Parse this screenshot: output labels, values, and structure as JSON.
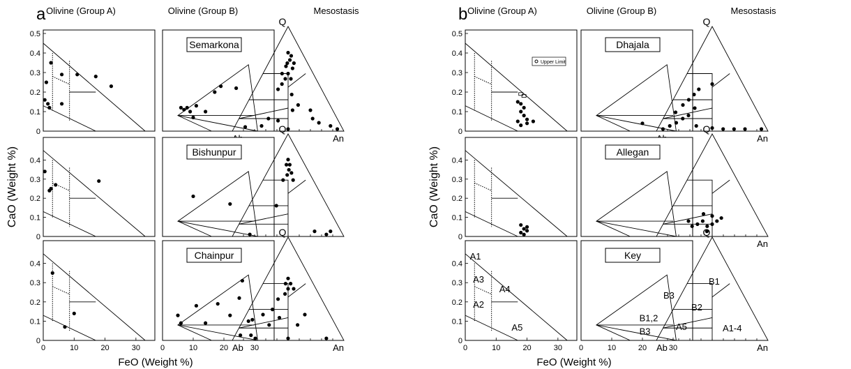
{
  "panels": [
    {
      "letter": "a",
      "col_headers": [
        "Olivine (Group A)",
        "Olivine (Group B)",
        "Mesostasis"
      ],
      "ylabel": "CaO (Weight %)",
      "xlabel": "FeO (Weight %)",
      "rows": [
        {
          "label": "Semarkona",
          "tern": {
            "Q": "Q",
            "Ab": "Ab",
            "An": "An"
          }
        },
        {
          "label": "Bishunpur",
          "tern": {
            "Q": "Q",
            "Ab": "",
            "An": ""
          }
        },
        {
          "label": "Chainpur",
          "tern": {
            "Q": "Q",
            "Ab": "Ab",
            "An": "An"
          }
        }
      ]
    },
    {
      "letter": "b",
      "col_headers": [
        "Olivine (Group A)",
        "Olivine (Group B)",
        "Mesostasis"
      ],
      "ylabel": "CaO (Weight %)",
      "xlabel": "FeO (Weight %)",
      "rows": [
        {
          "label": "Dhajala",
          "tern": {
            "Q": "Q",
            "Ab": "Ab",
            "An": "An"
          },
          "legend": "Upper Limit"
        },
        {
          "label": "Allegan",
          "tern": {
            "Q": "Q",
            "Ab": "Ab",
            "An": "An"
          }
        },
        {
          "label": "Key",
          "tern": {
            "Q": "Q",
            "Ab": "Ab",
            "An": "An"
          }
        }
      ]
    }
  ],
  "key_labels": {
    "A1": "A1",
    "A2": "A2",
    "A3": "A3",
    "A4": "A4",
    "A5": "A5",
    "B12": "B1,2",
    "B3": "B3",
    "tB1": "B1",
    "tB2": "B2",
    "tB3": "B3",
    "tA5": "A5",
    "tA14": "A1-4"
  },
  "axes": {
    "y_ticks_top": [
      "0.5",
      "0.4",
      "0.3",
      "0.2",
      "0.1",
      "0"
    ],
    "y_ticks": [
      "0.4",
      "0.3",
      "0.2",
      "0.1",
      "0"
    ],
    "x_ticks": [
      "0",
      "10",
      "20",
      "30"
    ],
    "xlim": [
      0,
      35
    ],
    "ylim": [
      0,
      0.5
    ]
  },
  "chart_data": {
    "type": "scatter",
    "xlabel": "FeO (Weight %)",
    "ylabel": "CaO (Weight %)",
    "xlim": [
      0,
      35
    ],
    "ylim": [
      0,
      0.5
    ],
    "series": [
      {
        "name": "Semarkona",
        "groupA": [
          [
            0.5,
            0.16
          ],
          [
            1,
            0.25
          ],
          [
            1.5,
            0.14
          ],
          [
            2,
            0.12
          ],
          [
            2.5,
            0.35
          ],
          [
            6,
            0.29
          ],
          [
            6,
            0.14
          ],
          [
            11,
            0.29
          ],
          [
            17,
            0.28
          ],
          [
            22,
            0.23
          ]
        ],
        "groupB": [
          [
            6,
            0.12
          ],
          [
            7,
            0.11
          ],
          [
            8,
            0.12
          ],
          [
            9,
            0.1
          ],
          [
            10,
            0.07
          ],
          [
            11,
            0.13
          ],
          [
            14,
            0.1
          ],
          [
            17,
            0.2
          ],
          [
            19,
            0.23
          ],
          [
            24,
            0.22
          ]
        ],
        "ternary": [
          [
            0.25,
            0.05
          ],
          [
            0.5,
            0.02
          ],
          [
            0.1,
            0.04
          ],
          [
            0.9,
            0.05
          ],
          [
            0.95,
            0.02
          ],
          [
            0.8,
            0.08
          ],
          [
            0.4,
            0.1
          ],
          [
            0.3,
            0.12
          ],
          [
            0.55,
            0.2
          ],
          [
            0.62,
            0.25
          ],
          [
            0.75,
            0.12
          ],
          [
            0.75,
            0.2
          ],
          [
            0.35,
            0.4
          ],
          [
            0.55,
            0.35
          ],
          [
            0.4,
            0.45
          ],
          [
            0.45,
            0.5
          ],
          [
            0.5,
            0.55
          ],
          [
            0.55,
            0.5
          ],
          [
            0.6,
            0.6
          ],
          [
            0.48,
            0.65
          ],
          [
            0.55,
            0.68
          ],
          [
            0.6,
            0.72
          ],
          [
            0.5,
            0.75
          ],
          [
            0.45,
            0.62
          ],
          [
            0.38,
            0.55
          ],
          [
            0.65,
            0.65
          ]
        ]
      },
      {
        "name": "Bishunpur",
        "groupA": [
          [
            0.5,
            0.34
          ],
          [
            2,
            0.24
          ],
          [
            2.5,
            0.25
          ],
          [
            4,
            0.27
          ],
          [
            18,
            0.29
          ]
        ],
        "groupB": [
          [
            10,
            0.21
          ],
          [
            22,
            0.17
          ]
        ],
        "ternary": [
          [
            0.5,
            0.75
          ],
          [
            0.45,
            0.7
          ],
          [
            0.55,
            0.7
          ],
          [
            0.52,
            0.65
          ],
          [
            0.58,
            0.62
          ],
          [
            0.48,
            0.6
          ],
          [
            0.6,
            0.55
          ],
          [
            0.4,
            0.55
          ],
          [
            0.35,
            0.3
          ],
          [
            0.9,
            0.05
          ],
          [
            0.15,
            0.02
          ],
          [
            0.85,
            0.02
          ],
          [
            0.75,
            0.05
          ]
        ]
      },
      {
        "name": "Chainpur",
        "groupA": [
          [
            3,
            0.35
          ],
          [
            10,
            0.14
          ],
          [
            7,
            0.07
          ]
        ],
        "groupB": [
          [
            5,
            0.13
          ],
          [
            6,
            0.09
          ],
          [
            11,
            0.18
          ],
          [
            14,
            0.09
          ],
          [
            18,
            0.19
          ],
          [
            22,
            0.13
          ],
          [
            26,
            0.31
          ],
          [
            25,
            0.22
          ],
          [
            28,
            0.1
          ]
        ],
        "ternary": [
          [
            0.05,
            0.05
          ],
          [
            0.15,
            0.05
          ],
          [
            0.1,
            0.2
          ],
          [
            0.2,
            0.25
          ],
          [
            0.3,
            0.3
          ],
          [
            0.35,
            0.4
          ],
          [
            0.45,
            0.45
          ],
          [
            0.5,
            0.5
          ],
          [
            0.55,
            0.55
          ],
          [
            0.5,
            0.6
          ],
          [
            0.6,
            0.5
          ],
          [
            0.7,
            0.25
          ],
          [
            0.6,
            0.15
          ],
          [
            0.2,
            0.02
          ],
          [
            0.5,
            0.02
          ],
          [
            0.85,
            0.02
          ],
          [
            0.4,
            0.22
          ],
          [
            0.3,
            0.15
          ],
          [
            0.45,
            0.55
          ]
        ]
      },
      {
        "name": "Dhajala",
        "groupA": [
          [
            17,
            0.15
          ],
          [
            18,
            0.14
          ],
          [
            18,
            0.1
          ],
          [
            19,
            0.12
          ],
          [
            19,
            0.08
          ],
          [
            20,
            0.06
          ],
          [
            17,
            0.05
          ],
          [
            20,
            0.04
          ],
          [
            22,
            0.05
          ],
          [
            18,
            0.03
          ]
        ],
        "upper_limit": [
          [
            18,
            0.19
          ],
          [
            19,
            0.18
          ]
        ],
        "groupB": [
          [
            20,
            0.04
          ]
        ],
        "ternary": [
          [
            0.05,
            0.02
          ],
          [
            0.1,
            0.05
          ],
          [
            0.15,
            0.08
          ],
          [
            0.2,
            0.12
          ],
          [
            0.25,
            0.15
          ],
          [
            0.1,
            0.18
          ],
          [
            0.15,
            0.25
          ],
          [
            0.2,
            0.3
          ],
          [
            0.25,
            0.35
          ],
          [
            0.3,
            0.4
          ],
          [
            0.3,
            0.22
          ],
          [
            0.35,
            0.05
          ],
          [
            0.5,
            0.03
          ],
          [
            0.6,
            0.02
          ],
          [
            0.7,
            0.02
          ],
          [
            0.8,
            0.02
          ],
          [
            0.95,
            0.02
          ],
          [
            0.5,
            0.45
          ]
        ]
      },
      {
        "name": "Allegan",
        "groupA": [
          [
            18,
            0.06
          ],
          [
            19,
            0.04
          ],
          [
            20,
            0.03
          ],
          [
            18,
            0.02
          ],
          [
            19,
            0.01
          ],
          [
            20,
            0.05
          ]
        ],
        "groupB": [],
        "ternary": [
          [
            0.25,
            0.15
          ],
          [
            0.3,
            0.1
          ],
          [
            0.35,
            0.12
          ],
          [
            0.4,
            0.15
          ],
          [
            0.45,
            0.1
          ],
          [
            0.5,
            0.12
          ],
          [
            0.55,
            0.15
          ],
          [
            0.6,
            0.18
          ],
          [
            0.5,
            0.2
          ],
          [
            0.4,
            0.22
          ],
          [
            0.45,
            0.05
          ]
        ]
      }
    ]
  }
}
